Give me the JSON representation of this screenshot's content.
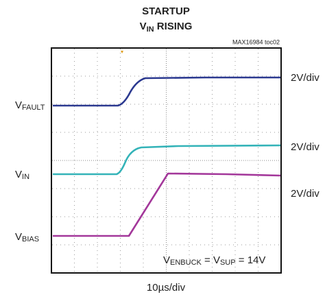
{
  "title": "STARTUP",
  "subtitle": {
    "main": "V",
    "sub": "IN",
    "rest": " RISING"
  },
  "figure_id": "MAX16984 toc02",
  "channels": [
    {
      "name": {
        "main": "V",
        "sub": "FAULT"
      },
      "scale": "2V/div"
    },
    {
      "name": {
        "main": "V",
        "sub": "IN"
      },
      "scale": "2V/div"
    },
    {
      "name": {
        "main": "V",
        "sub": "BIAS"
      },
      "scale": "2V/div"
    }
  ],
  "note": [
    "V",
    "ENBUCK",
    " = V",
    "SUP",
    " = 14V"
  ],
  "time_scale": "10µs/div"
}
